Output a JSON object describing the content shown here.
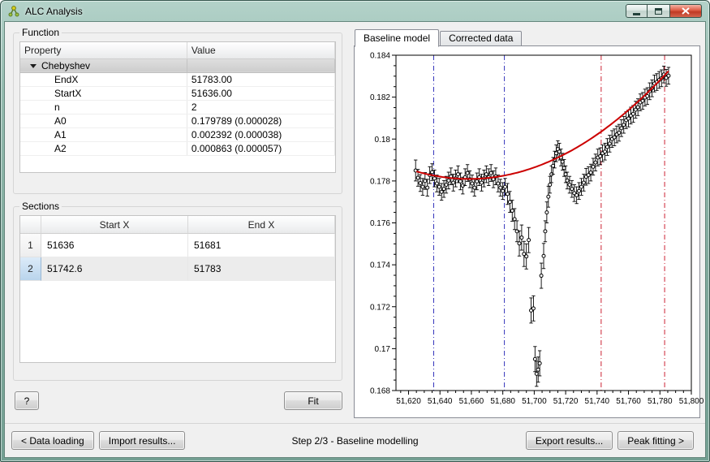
{
  "window": {
    "title": "ALC Analysis"
  },
  "function_group": {
    "label": "Function",
    "headers": [
      "Property",
      "Value"
    ],
    "group_label": "Chebyshev",
    "rows": [
      {
        "property": "EndX",
        "value": "51783.00"
      },
      {
        "property": "StartX",
        "value": "51636.00"
      },
      {
        "property": "n",
        "value": "2"
      },
      {
        "property": "A0",
        "value": "0.179789 (0.000028)"
      },
      {
        "property": "A1",
        "value": "0.002392 (0.000038)"
      },
      {
        "property": "A2",
        "value": "0.000863 (0.000057)"
      }
    ]
  },
  "sections_group": {
    "label": "Sections",
    "headers": [
      "Start X",
      "End X"
    ],
    "rows": [
      {
        "num": "1",
        "start": "51636",
        "end": "51681",
        "selected": false
      },
      {
        "num": "2",
        "start": "51742.6",
        "end": "51783",
        "selected": true
      }
    ]
  },
  "buttons": {
    "help": "?",
    "fit": "Fit",
    "data_loading": "< Data loading",
    "import_results": "Import results...",
    "export_results": "Export results...",
    "peak_fitting": "Peak fitting >"
  },
  "status": "Step 2/3 - Baseline modelling",
  "tabs": [
    {
      "label": "Baseline model",
      "active": true
    },
    {
      "label": "Corrected data",
      "active": false
    }
  ],
  "chart_data": {
    "type": "scatter",
    "title": "",
    "xlabel": "",
    "ylabel": "",
    "xlim": [
      51612,
      51800
    ],
    "ylim": [
      0.168,
      0.184
    ],
    "grid": false,
    "legend": "none",
    "x_ticks": [
      51620,
      51640,
      51660,
      51680,
      51700,
      51720,
      51740,
      51760,
      51780,
      51800
    ],
    "x_tick_labels": [
      "51,620",
      "51,640",
      "51,660",
      "51,680",
      "51,700",
      "51,720",
      "51,740",
      "51,760",
      "51,780",
      "51,800"
    ],
    "y_ticks": [
      0.168,
      0.17,
      0.172,
      0.174,
      0.176,
      0.178,
      0.18,
      0.182,
      0.184
    ],
    "y_tick_labels": [
      "0.168",
      "0.17",
      "0.172",
      "0.174",
      "0.176",
      "0.178",
      "0.18",
      "0.182",
      "0.184"
    ],
    "marker": "open-circle-with-error-bars",
    "point_color": "#000000",
    "section_lines": [
      {
        "x": 51636,
        "color": "#3333bb"
      },
      {
        "x": 51681,
        "color": "#3333bb"
      },
      {
        "x": 51742.6,
        "color": "#cc2233"
      },
      {
        "x": 51783,
        "color": "#cc2233"
      }
    ],
    "fit_curve": {
      "model": "chebyshev",
      "startX": 51636,
      "endX": 51783,
      "A0": 0.179789,
      "A1": 0.002392,
      "A2": 0.000863,
      "draw_range": [
        51625,
        51786
      ],
      "color": "#cc0000"
    },
    "points": [
      [
        51624.5,
        0.1785,
        0.0005
      ],
      [
        51626,
        0.17815,
        0.0004
      ],
      [
        51627.5,
        0.1779,
        0.0004
      ],
      [
        51629,
        0.17772,
        0.0004
      ],
      [
        51630.5,
        0.178,
        0.0004
      ],
      [
        51632,
        0.17768,
        0.0004
      ],
      [
        51633.5,
        0.17828,
        0.0004
      ],
      [
        51635,
        0.17842,
        0.0004
      ],
      [
        51636.5,
        0.17812,
        0.0004
      ],
      [
        51638,
        0.17788,
        0.0004
      ],
      [
        51639.5,
        0.17772,
        0.0004
      ],
      [
        51641,
        0.17748,
        0.0004
      ],
      [
        51642.5,
        0.17762,
        0.0004
      ],
      [
        51644,
        0.17782,
        0.0004
      ],
      [
        51645.5,
        0.17802,
        0.0004
      ],
      [
        51647,
        0.17822,
        0.0004
      ],
      [
        51648.5,
        0.17792,
        0.0004
      ],
      [
        51650,
        0.17812,
        0.0004
      ],
      [
        51651.5,
        0.17832,
        0.0004
      ],
      [
        51653,
        0.17798,
        0.0004
      ],
      [
        51654.5,
        0.17778,
        0.0004
      ],
      [
        51656,
        0.17818,
        0.0004
      ],
      [
        51657.5,
        0.17838,
        0.0004
      ],
      [
        51659,
        0.17808,
        0.0004
      ],
      [
        51660.5,
        0.17788,
        0.0004
      ],
      [
        51662,
        0.17768,
        0.0004
      ],
      [
        51663.5,
        0.17798,
        0.0004
      ],
      [
        51665,
        0.17818,
        0.0004
      ],
      [
        51666.5,
        0.17792,
        0.0004
      ],
      [
        51668,
        0.17812,
        0.0004
      ],
      [
        51669.5,
        0.17832,
        0.0004
      ],
      [
        51671,
        0.17818,
        0.0004
      ],
      [
        51672.5,
        0.17838,
        0.0004
      ],
      [
        51674,
        0.17808,
        0.0004
      ],
      [
        51675.5,
        0.17822,
        0.0004
      ],
      [
        51677,
        0.17788,
        0.0004
      ],
      [
        51678.5,
        0.17768,
        0.0004
      ],
      [
        51680,
        0.17752,
        0.0004
      ],
      [
        51681.5,
        0.17772,
        0.0004
      ],
      [
        51683,
        0.17738,
        0.0005
      ],
      [
        51684.5,
        0.177,
        0.0005
      ],
      [
        51686,
        0.17658,
        0.0005
      ],
      [
        51687.5,
        0.17618,
        0.0005
      ],
      [
        51689,
        0.1756,
        0.0005
      ],
      [
        51690.5,
        0.17502,
        0.0006
      ],
      [
        51692,
        0.1753,
        0.0006
      ],
      [
        51693.5,
        0.17452,
        0.0006
      ],
      [
        51695,
        0.1744,
        0.0006
      ],
      [
        51696.5,
        0.17518,
        0.0006
      ],
      [
        51698,
        0.17182,
        0.0006
      ],
      [
        51699.5,
        0.17192,
        0.0006
      ],
      [
        51700.5,
        0.1695,
        0.0006
      ],
      [
        51701.5,
        0.1688,
        0.0006
      ],
      [
        51702.5,
        0.169,
        0.0006
      ],
      [
        51703.5,
        0.1693,
        0.0006
      ],
      [
        51704.5,
        0.17348,
        0.0006
      ],
      [
        51706,
        0.17442,
        0.0006
      ],
      [
        51707,
        0.1756,
        0.0005
      ],
      [
        51708,
        0.1765,
        0.0005
      ],
      [
        51709,
        0.17725,
        0.0005
      ],
      [
        51710,
        0.17782,
        0.0004
      ],
      [
        51711,
        0.17832,
        0.0004
      ],
      [
        51712,
        0.17872,
        0.0004
      ],
      [
        51713,
        0.17902,
        0.0004
      ],
      [
        51714,
        0.17932,
        0.0004
      ],
      [
        51715,
        0.17952,
        0.0004
      ],
      [
        51716,
        0.1794,
        0.0004
      ],
      [
        51717,
        0.17912,
        0.0004
      ],
      [
        51718,
        0.17892,
        0.0004
      ],
      [
        51719,
        0.17862,
        0.0004
      ],
      [
        51720,
        0.17832,
        0.0004
      ],
      [
        51721,
        0.17802,
        0.0004
      ],
      [
        51722.5,
        0.17782,
        0.0004
      ],
      [
        51724,
        0.17762,
        0.0004
      ],
      [
        51725.5,
        0.17742,
        0.0004
      ],
      [
        51727,
        0.17732,
        0.0004
      ],
      [
        51728.5,
        0.17752,
        0.0004
      ],
      [
        51730,
        0.17772,
        0.0004
      ],
      [
        51731.5,
        0.17792,
        0.0004
      ],
      [
        51733,
        0.1782,
        0.0004
      ],
      [
        51734.5,
        0.17828,
        0.0004
      ],
      [
        51736,
        0.1784,
        0.0004
      ],
      [
        51737.5,
        0.17868,
        0.0004
      ],
      [
        51739,
        0.17888,
        0.0004
      ],
      [
        51740.5,
        0.17912,
        0.0004
      ],
      [
        51742,
        0.17918,
        0.0004
      ],
      [
        51743.5,
        0.17932,
        0.0004
      ],
      [
        51745,
        0.1794,
        0.0004
      ],
      [
        51746.5,
        0.17962,
        0.0004
      ],
      [
        51748,
        0.17978,
        0.0004
      ],
      [
        51749.5,
        0.18,
        0.0004
      ],
      [
        51751,
        0.18008,
        0.0004
      ],
      [
        51752.5,
        0.18022,
        0.0004
      ],
      [
        51754,
        0.1803,
        0.0004
      ],
      [
        51755.5,
        0.18052,
        0.0004
      ],
      [
        51757,
        0.18068,
        0.0004
      ],
      [
        51758.5,
        0.1809,
        0.0004
      ],
      [
        51760,
        0.18098,
        0.0004
      ],
      [
        51761.5,
        0.18112,
        0.0004
      ],
      [
        51763,
        0.1812,
        0.0004
      ],
      [
        51764.5,
        0.1814,
        0.0004
      ],
      [
        51766,
        0.18152,
        0.0004
      ],
      [
        51767.5,
        0.18175,
        0.0004
      ],
      [
        51769,
        0.18182,
        0.0004
      ],
      [
        51770.5,
        0.18198,
        0.0004
      ],
      [
        51772,
        0.18205,
        0.0004
      ],
      [
        51773.5,
        0.18228,
        0.0004
      ],
      [
        51775,
        0.18242,
        0.0004
      ],
      [
        51776.5,
        0.18265,
        0.0004
      ],
      [
        51778,
        0.18272,
        0.0004
      ],
      [
        51779.5,
        0.18282,
        0.0004
      ],
      [
        51781,
        0.1829,
        0.0004
      ],
      [
        51782.5,
        0.18308,
        0.0004
      ],
      [
        51784,
        0.18292,
        0.0004
      ],
      [
        51785.5,
        0.18302,
        0.0004
      ]
    ]
  }
}
